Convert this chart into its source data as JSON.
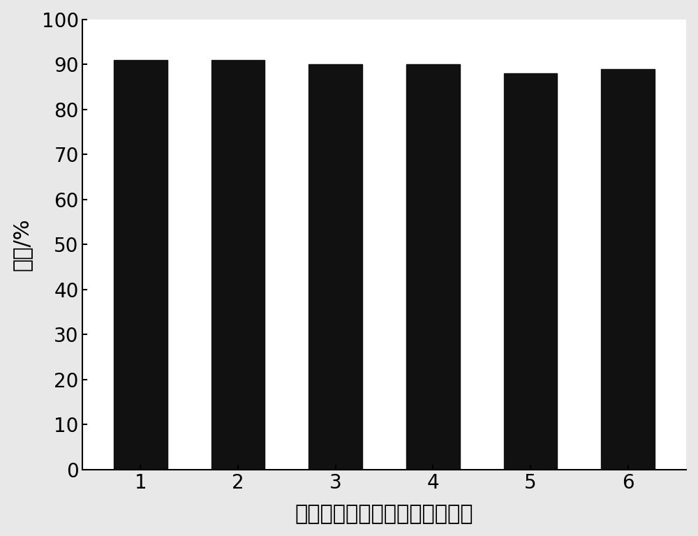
{
  "categories": [
    "1",
    "2",
    "3",
    "4",
    "5",
    "6"
  ],
  "values": [
    91,
    91,
    90,
    90,
    88,
    89
  ],
  "bar_color": "#111111",
  "bar_width": 0.55,
  "xlabel": "高酸度离子液体催化剂使用次数",
  "ylabel": "产率/%",
  "ylim": [
    0,
    100
  ],
  "yticks": [
    0,
    10,
    20,
    30,
    40,
    50,
    60,
    70,
    80,
    90,
    100
  ],
  "xlabel_fontsize": 22,
  "ylabel_fontsize": 22,
  "tick_fontsize": 20,
  "background_color": "#ffffff",
  "figure_bg": "#e8e8e8"
}
